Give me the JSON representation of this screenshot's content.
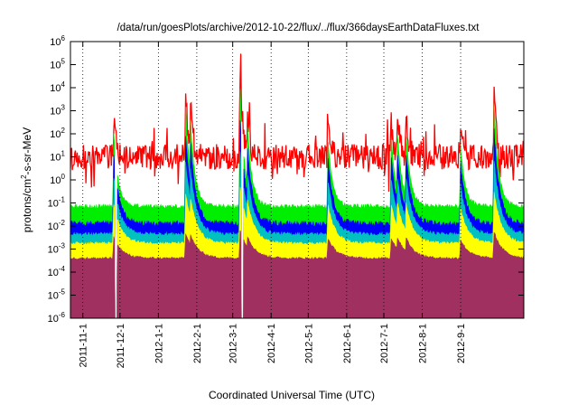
{
  "chart_data": {
    "type": "area",
    "title": "/data/run/goesPlots/archive/2012-10-22/flux/../flux/366daysEarthDataFluxes.txt",
    "xlabel": "Coordinated Universal Time (UTC)",
    "ylabel_parts": [
      "protons/cm",
      "2",
      "-s-sr-MeV"
    ],
    "yscale": "log",
    "ylim": [
      1e-06,
      1000000.0
    ],
    "y_ticks": [
      {
        "base": "10",
        "exp": "-6"
      },
      {
        "base": "10",
        "exp": "-5"
      },
      {
        "base": "10",
        "exp": "-4"
      },
      {
        "base": "10",
        "exp": "-3"
      },
      {
        "base": "10",
        "exp": "-2"
      },
      {
        "base": "10",
        "exp": "-1"
      },
      {
        "base": "10",
        "exp": "0"
      },
      {
        "base": "10",
        "exp": "1"
      },
      {
        "base": "10",
        "exp": "2"
      },
      {
        "base": "10",
        "exp": "3"
      },
      {
        "base": "10",
        "exp": "4"
      },
      {
        "base": "10",
        "exp": "5"
      },
      {
        "base": "10",
        "exp": "6"
      }
    ],
    "xlim": [
      "2011-10-22",
      "2012-10-22"
    ],
    "x_ticks": [
      "2011-11-1",
      "2011-12-1",
      "2012-1-1",
      "2012-2-1",
      "2012-3-1",
      "2012-4-1",
      "2012-5-1",
      "2012-6-1",
      "2012-7-1",
      "2012-8-1",
      "2012-9-1"
    ],
    "grid": true,
    "grid_style": "dotted-vertical",
    "series": [
      {
        "color": "#ff0000",
        "baseline_log": 1.0,
        "noise": 0.55
      },
      {
        "color": "#00ee00",
        "baseline_log": -1.15,
        "noise": 0.1
      },
      {
        "color": "#0000ff",
        "baseline_log": -1.9,
        "noise": 0.12
      },
      {
        "color": "#00c0c0",
        "baseline_log": -2.35,
        "noise": 0.08
      },
      {
        "color": "#ffff00",
        "baseline_log": -2.75,
        "noise": 0.06
      },
      {
        "color": "#a03060",
        "baseline_log": -3.4,
        "noise": 0.05
      }
    ],
    "events": [
      {
        "date": "2011-11-26",
        "peak_log": 2.6
      },
      {
        "date": "2012-01-23",
        "peak_log": 4.0
      },
      {
        "date": "2012-01-27",
        "peak_log": 3.3
      },
      {
        "date": "2012-03-07",
        "peak_log": 4.9
      },
      {
        "date": "2012-03-13",
        "peak_log": 3.0
      },
      {
        "date": "2012-05-17",
        "peak_log": 2.3
      },
      {
        "date": "2012-07-07",
        "peak_log": 2.5
      },
      {
        "date": "2012-07-12",
        "peak_log": 2.7
      },
      {
        "date": "2012-07-19",
        "peak_log": 2.6
      },
      {
        "date": "2012-09-01",
        "peak_log": 2.0
      },
      {
        "date": "2012-09-28",
        "peak_log": 4.2
      }
    ],
    "data_gaps": [
      "2011-11-27",
      "2012-03-08"
    ]
  }
}
